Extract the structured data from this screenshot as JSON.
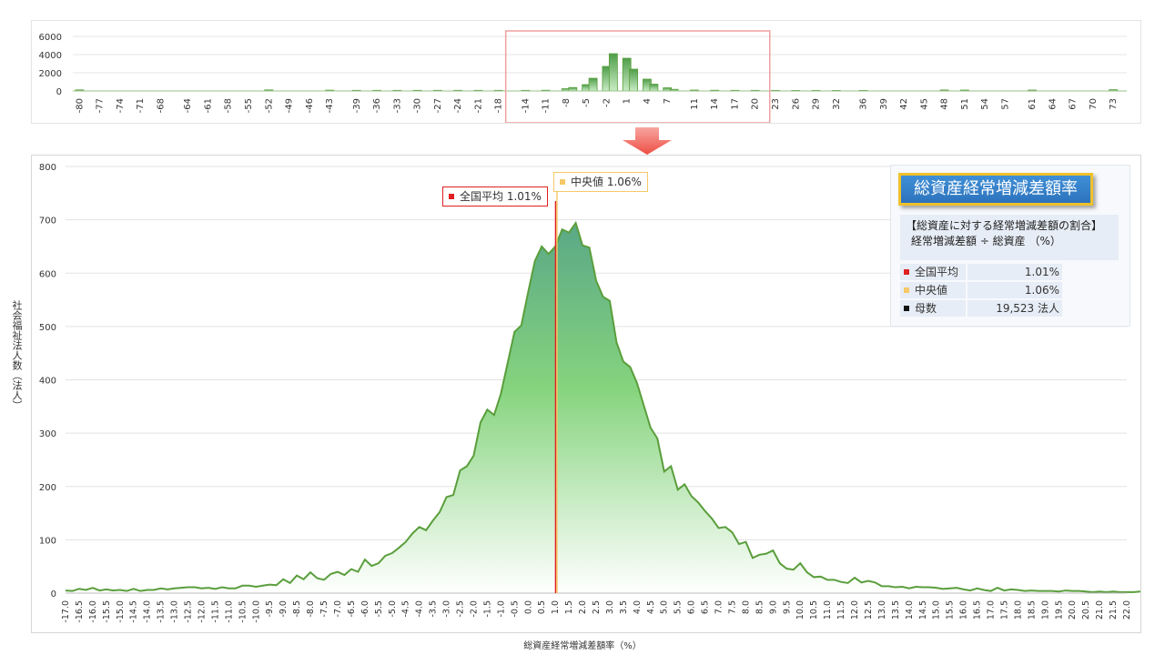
{
  "colors": {
    "bar_fill": "#7cc576",
    "line_green": "#5a9e3c",
    "mean_red": "#e02020",
    "median_yellow": "#f5c969",
    "highlight_box": "#f0a0a0",
    "title_blue": "#2e7dcf",
    "title_border": "#f0c12c"
  },
  "top_chart": {
    "y_ticks": [
      "6000",
      "4000",
      "2000",
      "0"
    ],
    "x_ticks": [
      "-80",
      "-77",
      "-74",
      "-71",
      "-68",
      "-64",
      "-61",
      "-58",
      "-55",
      "-52",
      "-49",
      "-46",
      "-43",
      "-39",
      "-36",
      "-33",
      "-30",
      "-27",
      "-24",
      "-21",
      "-18",
      "-14",
      "-11",
      "-8",
      "-5",
      "-2",
      "1",
      "4",
      "7",
      "11",
      "14",
      "17",
      "20",
      "23",
      "26",
      "29",
      "32",
      "36",
      "39",
      "42",
      "45",
      "48",
      "51",
      "54",
      "57",
      "61",
      "64",
      "67",
      "70",
      "73"
    ],
    "x_unit": "(%)"
  },
  "main_chart": {
    "y_ticks": [
      "800",
      "700",
      "600",
      "500",
      "400",
      "300",
      "200",
      "100",
      "0"
    ],
    "ylabel": "社会福祉法人数（法人）",
    "xlabel": "総資産経常増減差額率（%）",
    "mean_label": "全国平均  1.01%",
    "median_label": "中央値  1.06%"
  },
  "info": {
    "title": "総資産経常増減差額率",
    "formula_line1": "【総資産に対する経常増減差額の割合】",
    "formula_line2": "経常増減差額  ÷  総資産   （%）",
    "rows": [
      {
        "label": "全国平均",
        "value": "1.01%",
        "color": "#e02020"
      },
      {
        "label": "中央値",
        "value": "1.06%",
        "color": "#f5c969"
      },
      {
        "label": "母数",
        "value": "19,523  法人",
        "color": "#111111"
      }
    ]
  },
  "chart_data": [
    {
      "type": "bar",
      "xlabel": "(%)",
      "ylim": [
        0,
        6000
      ],
      "x": [
        -80,
        -77,
        -74,
        -71,
        -68,
        -64,
        -61,
        -58,
        -55,
        -52,
        -49,
        -46,
        -43,
        -39,
        -36,
        -33,
        -30,
        -27,
        -24,
        -21,
        -18,
        -14,
        -11,
        -8,
        -7,
        -5,
        -4,
        -2,
        -1,
        1,
        2,
        4,
        5,
        7,
        8,
        11,
        14,
        17,
        20,
        23,
        26,
        29,
        32,
        36,
        39,
        42,
        45,
        48,
        51,
        54,
        57,
        61,
        64,
        67,
        70,
        73
      ],
      "values": [
        120,
        0,
        0,
        0,
        0,
        0,
        0,
        0,
        0,
        120,
        0,
        0,
        90,
        70,
        70,
        70,
        70,
        70,
        70,
        70,
        70,
        70,
        80,
        250,
        380,
        700,
        1400,
        2700,
        4100,
        3600,
        2400,
        1300,
        750,
        350,
        180,
        100,
        80,
        70,
        70,
        60,
        60,
        60,
        60,
        60,
        0,
        0,
        0,
        110,
        100,
        0,
        0,
        100,
        0,
        0,
        0,
        140
      ],
      "highlight_range": [
        -18,
        20
      ]
    },
    {
      "type": "area",
      "xlabel": "総資産経常増減差額率（%）",
      "ylabel": "社会福祉法人数（法人）",
      "ylim": [
        0,
        800
      ],
      "xlim": [
        -17.0,
        22.0
      ],
      "mean": 1.01,
      "median": 1.06,
      "x_start": -17.0,
      "x_step": 0.25,
      "values": [
        5,
        4,
        8,
        6,
        10,
        5,
        7,
        5,
        6,
        4,
        8,
        4,
        6,
        6,
        9,
        7,
        9,
        10,
        11,
        11,
        9,
        10,
        8,
        11,
        9,
        9,
        14,
        14,
        12,
        14,
        16,
        15,
        26,
        19,
        33,
        26,
        39,
        28,
        25,
        36,
        40,
        34,
        45,
        40,
        63,
        51,
        56,
        70,
        75,
        85,
        96,
        112,
        124,
        118,
        136,
        152,
        180,
        184,
        230,
        238,
        258,
        320,
        344,
        334,
        374,
        432,
        490,
        502,
        564,
        623,
        650,
        636,
        650,
        682,
        676,
        694,
        652,
        648,
        586,
        556,
        548,
        470,
        434,
        424,
        394,
        352,
        310,
        290,
        228,
        238,
        194,
        204,
        182,
        170,
        154,
        140,
        122,
        124,
        114,
        92,
        96,
        66,
        72,
        74,
        80,
        56,
        46,
        44,
        56,
        39,
        30,
        31,
        25,
        25,
        21,
        19,
        29,
        20,
        23,
        20,
        13,
        13,
        11,
        12,
        9,
        12,
        11,
        11,
        10,
        8,
        9,
        10,
        7,
        5,
        9,
        6,
        4,
        10,
        5,
        7,
        6,
        4,
        5,
        4,
        4,
        4,
        3,
        5,
        4,
        4,
        3,
        2,
        3,
        2,
        3,
        2,
        2,
        2,
        3,
        4,
        4,
        2,
        3,
        2,
        2,
        3,
        4,
        3
      ]
    }
  ]
}
